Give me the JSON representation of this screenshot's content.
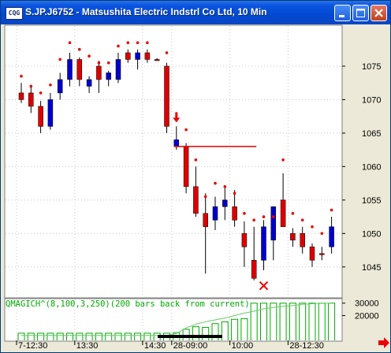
{
  "window": {
    "title": "S.JP.J6752 - Matsushita Electric Indstrl Co Ltd, 10 Min",
    "icon": "app-icon",
    "icon_text": "CQG"
  },
  "buttons": {
    "minimize": "minimize-icon",
    "maximize": "maximize-icon",
    "close": "close-icon",
    "scroll": "arrow-right-icon"
  },
  "colors": {
    "up": "#0000cc",
    "down": "#dd0000",
    "stop_dot": "#ee0000",
    "indicator": "#00aa00",
    "background": "#ffffff",
    "hline": "#dd0000"
  },
  "indicator_label": "QMAGICH^(8,100,3,250)(200 bars back from current)",
  "chart_data": {
    "type": "candlestick",
    "y_ticks": [
      1075,
      1070,
      1065,
      1060,
      1055,
      1050,
      1045
    ],
    "ylim": [
      1040.5,
      1081
    ],
    "x_labels": [
      "7-12:30",
      "13:30",
      "14:30",
      "28-09:00",
      "10:00",
      "28-12:30"
    ],
    "horizontal_line": {
      "y": 1063,
      "from_bar": 16,
      "to_bar": 24
    },
    "down_arrow_bar": 16,
    "x_marker": {
      "bar": 25,
      "y": 1042.2
    },
    "candles": [
      {
        "o": 1071,
        "h": 1072.5,
        "l": 1069.5,
        "c": 1070,
        "stop": 1073.5
      },
      {
        "o": 1071,
        "h": 1072,
        "l": 1068,
        "c": 1069,
        "stop": 1072
      },
      {
        "o": 1069,
        "h": 1069.8,
        "l": 1065,
        "c": 1066,
        "stop": 1071
      },
      {
        "o": 1066,
        "h": 1071,
        "l": 1065.5,
        "c": 1070,
        "stop": 1072.2
      },
      {
        "o": 1071,
        "h": 1074,
        "l": 1070,
        "c": 1073,
        "stop": 1076
      },
      {
        "o": 1073,
        "h": 1077,
        "l": 1072,
        "c": 1076,
        "stop": 1078.5
      },
      {
        "o": 1076,
        "h": 1076.3,
        "l": 1072,
        "c": 1073,
        "stop": 1077.5
      },
      {
        "o": 1072,
        "h": 1073.5,
        "l": 1071,
        "c": 1073,
        "stop": 1076.5
      },
      {
        "o": 1075,
        "h": 1075.8,
        "l": 1071,
        "c": 1073,
        "stop": 1075.5
      },
      {
        "o": 1073,
        "h": 1074.3,
        "l": 1072,
        "c": 1074,
        "stop": 1075.5
      },
      {
        "o": 1073,
        "h": 1077,
        "l": 1072.5,
        "c": 1076,
        "stop": 1078
      },
      {
        "o": 1077,
        "h": 1077.5,
        "l": 1075.5,
        "c": 1076,
        "stop": 1078.5
      },
      {
        "o": 1076,
        "h": 1077.5,
        "l": 1074.5,
        "c": 1077,
        "stop": 1078.5
      },
      {
        "o": 1077,
        "h": 1077.5,
        "l": 1075.5,
        "c": 1076,
        "stop": 1078.5
      },
      {
        "o": 1076,
        "h": 1076.2,
        "l": 1075.8,
        "c": 1076,
        "stop": null
      },
      {
        "o": 1075,
        "h": 1075.5,
        "l": 1065,
        "c": 1066,
        "stop": 1077
      },
      {
        "o": 1063,
        "h": 1066,
        "l": 1062.5,
        "c": 1064,
        "stop": null
      },
      {
        "o": 1063,
        "h": 1063.5,
        "l": 1056,
        "c": 1057,
        "stop": 1065.5
      },
      {
        "o": 1057,
        "h": 1060,
        "l": 1052.5,
        "c": 1053,
        "stop": 1061
      },
      {
        "o": 1053,
        "h": 1056,
        "l": 1044,
        "c": 1051,
        "stop": 1055.5
      },
      {
        "o": 1052,
        "h": 1055.5,
        "l": 1050.5,
        "c": 1054,
        "stop": 1057.5
      },
      {
        "o": 1054,
        "h": 1057,
        "l": 1052,
        "c": 1055,
        "stop": 1057
      },
      {
        "o": 1054,
        "h": 1056.5,
        "l": 1051,
        "c": 1052,
        "stop": 1056
      },
      {
        "o": 1050,
        "h": 1051.8,
        "l": 1045,
        "c": 1048,
        "stop": 1053
      },
      {
        "o": 1046,
        "h": 1051,
        "l": 1043,
        "c": 1043.3,
        "stop": 1052
      },
      {
        "o": 1046,
        "h": 1052,
        "l": 1044.5,
        "c": 1051,
        "stop": 1052.5
      },
      {
        "o": 1049,
        "h": 1054,
        "l": 1046,
        "c": 1054,
        "stop": 1052.5
      },
      {
        "o": 1055,
        "h": 1059,
        "l": 1051,
        "c": 1051,
        "stop": 1061
      },
      {
        "o": 1050,
        "h": 1050.8,
        "l": 1048,
        "c": 1049,
        "stop": 1053
      },
      {
        "o": 1050,
        "h": 1051,
        "l": 1047,
        "c": 1048,
        "stop": 1052
      },
      {
        "o": 1048,
        "h": 1048.5,
        "l": 1045,
        "c": 1046,
        "stop": 1051
      },
      {
        "o": 1047,
        "h": 1048,
        "l": 1046,
        "c": 1047,
        "stop": 1050
      },
      {
        "o": 1048,
        "h": 1052.5,
        "l": 1047,
        "c": 1051,
        "stop": 1053.5
      }
    ],
    "indicator": {
      "ylim": [
        0,
        33000
      ],
      "y_ticks": [
        30000,
        20000
      ],
      "bars": [
        5800,
        5800,
        5800,
        5800,
        5800,
        5800,
        5800,
        5800,
        5800,
        5800,
        5800,
        5800,
        5800,
        5800,
        5800,
        5800,
        6200,
        9000,
        11000,
        10500,
        13500,
        15000,
        17000,
        17500,
        30000,
        30000,
        30000,
        30000,
        30000,
        30000,
        30000,
        30000,
        30000
      ],
      "line": [
        4000,
        4000,
        4000,
        4000,
        4000,
        4000,
        4000,
        4000,
        4000,
        4000,
        4000,
        4000,
        4000,
        4000,
        4000,
        4000,
        5500,
        10000,
        13000,
        15000,
        16500,
        18000,
        20000,
        22000,
        23500,
        25500,
        26500,
        27500,
        28000,
        29000,
        29500,
        30000,
        30000
      ]
    }
  }
}
